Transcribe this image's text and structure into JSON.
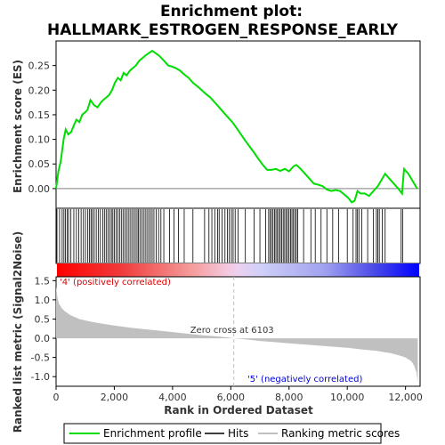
{
  "chart_data": {
    "type": "line",
    "title": "Enrichment plot:",
    "subtitle": "HALLMARK_ESTROGEN_RESPONSE_EARLY",
    "top_panel": {
      "ylabel": "Enrichment score (ES)",
      "ylim": [
        -0.04,
        0.3
      ],
      "yticks": [
        0.0,
        0.05,
        0.1,
        0.15,
        0.2,
        0.25
      ],
      "ytick_labels": [
        "0.00",
        "0.05",
        "0.10",
        "0.15",
        "0.20",
        "0.25"
      ],
      "series": [
        {
          "name": "Enrichment profile",
          "color": "#00dd00",
          "x": [
            0,
            80,
            160,
            260,
            330,
            420,
            520,
            620,
            700,
            800,
            900,
            1000,
            1080,
            1180,
            1300,
            1420,
            1540,
            1620,
            1720,
            1820,
            1920,
            2020,
            2120,
            2220,
            2320,
            2420,
            2540,
            2640,
            2740,
            2860,
            2960,
            3060,
            3180,
            3300,
            3420,
            3540,
            3700,
            3850,
            3980,
            4100,
            4250,
            4400,
            4550,
            4700,
            4850,
            5000,
            5150,
            5300,
            5450,
            5600,
            5750,
            5900,
            6050,
            6200,
            6350,
            6500,
            6650,
            6800,
            6950,
            7100,
            7250,
            7400,
            7550,
            7700,
            7850,
            8000,
            8150,
            8250,
            8400,
            8550,
            8700,
            8850,
            9000,
            9150,
            9300,
            9450,
            9600,
            9750,
            9900,
            10050,
            10150,
            10250,
            10350,
            10450,
            10600,
            10750,
            10900,
            11050,
            11150,
            11300,
            11450,
            11600,
            11750,
            11880,
            11950,
            12100,
            12250,
            12400
          ],
          "values": [
            0.0,
            0.035,
            0.055,
            0.1,
            0.12,
            0.11,
            0.115,
            0.13,
            0.14,
            0.135,
            0.15,
            0.155,
            0.16,
            0.18,
            0.17,
            0.165,
            0.175,
            0.18,
            0.185,
            0.19,
            0.2,
            0.215,
            0.225,
            0.22,
            0.235,
            0.23,
            0.24,
            0.245,
            0.25,
            0.26,
            0.265,
            0.27,
            0.275,
            0.28,
            0.275,
            0.27,
            0.26,
            0.25,
            0.248,
            0.245,
            0.24,
            0.232,
            0.225,
            0.215,
            0.208,
            0.2,
            0.192,
            0.185,
            0.175,
            0.165,
            0.155,
            0.145,
            0.135,
            0.123,
            0.11,
            0.097,
            0.085,
            0.073,
            0.06,
            0.048,
            0.038,
            0.038,
            0.04,
            0.036,
            0.04,
            0.035,
            0.045,
            0.048,
            0.04,
            0.03,
            0.02,
            0.01,
            0.008,
            0.005,
            -0.002,
            -0.005,
            -0.003,
            -0.005,
            -0.012,
            -0.02,
            -0.028,
            -0.025,
            -0.005,
            -0.01,
            -0.01,
            -0.015,
            -0.005,
            0.005,
            0.015,
            0.03,
            0.02,
            0.01,
            0.0,
            -0.01,
            0.04,
            0.03,
            0.015,
            0.0
          ]
        }
      ],
      "zero_line": 0.0
    },
    "hits": {
      "name": "Hits",
      "color": "#000000",
      "positions": [
        30,
        120,
        210,
        270,
        320,
        380,
        430,
        510,
        610,
        700,
        780,
        860,
        940,
        1010,
        1090,
        1150,
        1200,
        1250,
        1310,
        1380,
        1450,
        1520,
        1600,
        1660,
        1720,
        1780,
        1840,
        1900,
        1950,
        2000,
        2060,
        2120,
        2180,
        2240,
        2300,
        2360,
        2420,
        2480,
        2540,
        2600,
        2660,
        2720,
        2780,
        2830,
        2880,
        2940,
        3000,
        3060,
        3120,
        3180,
        3240,
        3300,
        3360,
        3440,
        3520,
        3600,
        3700,
        3900,
        4050,
        4200,
        4400,
        4700,
        5100,
        5250,
        5350,
        5450,
        5550,
        5600,
        5700,
        5800,
        5880,
        5950,
        6020,
        6080,
        6150,
        6250,
        6500,
        6800,
        7000,
        7200,
        7300,
        7350,
        7400,
        7450,
        7500,
        7550,
        7600,
        7650,
        7700,
        7750,
        7800,
        7850,
        7900,
        7950,
        8000,
        8050,
        8100,
        8150,
        8200,
        8250,
        8300,
        8500,
        8750,
        8900,
        9100,
        9300,
        9500,
        9700,
        10000,
        10200,
        10300,
        10350,
        10400,
        10500,
        10700,
        10900,
        11000,
        11050,
        11100,
        11200,
        11300,
        11850,
        11900
      ]
    },
    "ranking_bar": {
      "label_pos": "'4' (positively correlated)",
      "label_neg": "'5' (negatively correlated)",
      "pos_color": "#ff0000",
      "neg_color": "#0000ff"
    },
    "bottom_panel": {
      "name": "Ranking metric scores",
      "ylabel": "Ranked list metric (Signal2Noise)",
      "xlabel": "Rank in Ordered Dataset",
      "ylim": [
        -1.25,
        1.6
      ],
      "yticks": [
        -1.0,
        -0.5,
        0.0,
        0.5,
        1.0,
        1.5
      ],
      "ytick_labels": [
        "-1.0",
        "-0.5",
        "0.0",
        "0.5",
        "1.0",
        "1.5"
      ],
      "xlim": [
        0,
        12500
      ],
      "xticks": [
        0,
        2000,
        4000,
        6000,
        8000,
        10000,
        12000
      ],
      "xtick_labels": [
        "0",
        "2,000",
        "4,000",
        "6,000",
        "8,000",
        "10,000",
        "12,000"
      ],
      "zero_cross": 6103,
      "zero_cross_label": "Zero cross at 6103",
      "color": "#c0c0c0",
      "x": [
        0,
        50,
        100,
        200,
        300,
        500,
        800,
        1200,
        1600,
        2000,
        2500,
        3000,
        3500,
        4000,
        4500,
        5000,
        5500,
        6000,
        6103,
        6500,
        7000,
        7500,
        8000,
        8500,
        9000,
        9500,
        10000,
        10500,
        11000,
        11500,
        11800,
        12000,
        12200,
        12300,
        12380,
        12420
      ],
      "values": [
        1.35,
        1.05,
        0.9,
        0.78,
        0.7,
        0.6,
        0.5,
        0.43,
        0.38,
        0.33,
        0.28,
        0.24,
        0.2,
        0.16,
        0.12,
        0.08,
        0.05,
        0.01,
        0.0,
        -0.03,
        -0.07,
        -0.1,
        -0.13,
        -0.16,
        -0.19,
        -0.22,
        -0.25,
        -0.29,
        -0.33,
        -0.39,
        -0.45,
        -0.5,
        -0.6,
        -0.72,
        -0.9,
        -1.15
      ]
    },
    "legend": {
      "placement": "bottom",
      "items": [
        {
          "label": "Enrichment profile",
          "color": "#00dd00",
          "kind": "line"
        },
        {
          "label": "Hits",
          "color": "#000000",
          "kind": "line"
        },
        {
          "label": "Ranking metric scores",
          "color": "#c0c0c0",
          "kind": "line"
        }
      ]
    }
  }
}
